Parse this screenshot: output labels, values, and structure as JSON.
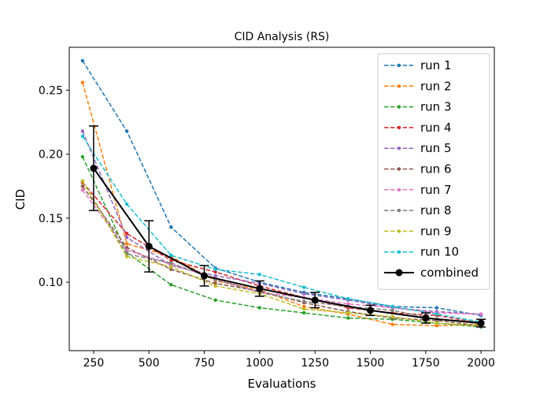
{
  "chart_data": {
    "type": "line",
    "title": "CID Analysis (RS)",
    "xlabel": "Evaluations",
    "ylabel": "CID",
    "xlim": [
      140,
      2060
    ],
    "ylim": [
      0.0465,
      0.2835
    ],
    "xticks": [
      250,
      500,
      750,
      1000,
      1250,
      1500,
      1750,
      2000
    ],
    "xtick_labels": [
      "250",
      "500",
      "750",
      "1000",
      "1250",
      "1500",
      "1750",
      "2000"
    ],
    "yticks": [
      0.1,
      0.15,
      0.2,
      0.25
    ],
    "ytick_labels": [
      "0.10",
      "0.15",
      "0.20",
      "0.25"
    ],
    "grid": false,
    "legend_position": "top-right",
    "x": [
      200,
      400,
      600,
      800,
      1000,
      1200,
      1400,
      1600,
      1800,
      2000
    ],
    "series": [
      {
        "name": "run 1",
        "color": "#1f77b4",
        "values": [
          0.273,
          0.218,
          0.143,
          0.111,
          0.1,
          0.092,
          0.087,
          0.081,
          0.08,
          0.074
        ]
      },
      {
        "name": "run 2",
        "color": "#ff7f0e",
        "values": [
          0.256,
          0.13,
          0.12,
          0.101,
          0.094,
          0.081,
          0.075,
          0.067,
          0.066,
          0.067
        ]
      },
      {
        "name": "run 3",
        "color": "#2ca02c",
        "values": [
          0.198,
          0.123,
          0.098,
          0.086,
          0.08,
          0.076,
          0.072,
          0.071,
          0.068,
          0.065
        ]
      },
      {
        "name": "run 4",
        "color": "#d62728",
        "values": [
          0.178,
          0.138,
          0.117,
          0.108,
          0.097,
          0.088,
          0.08,
          0.076,
          0.074,
          0.068
        ]
      },
      {
        "name": "run 5",
        "color": "#9467bd",
        "values": [
          0.218,
          0.135,
          0.113,
          0.105,
          0.099,
          0.091,
          0.086,
          0.08,
          0.077,
          0.075
        ]
      },
      {
        "name": "run 6",
        "color": "#8c564b",
        "values": [
          0.175,
          0.127,
          0.11,
          0.099,
          0.093,
          0.084,
          0.077,
          0.072,
          0.07,
          0.066
        ]
      },
      {
        "name": "run 7",
        "color": "#e377c2",
        "values": [
          0.172,
          0.125,
          0.114,
          0.103,
          0.092,
          0.088,
          0.083,
          0.08,
          0.076,
          0.075
        ]
      },
      {
        "name": "run 8",
        "color": "#7f7f7f",
        "values": [
          0.179,
          0.122,
          0.115,
          0.102,
          0.092,
          0.085,
          0.081,
          0.078,
          0.071,
          0.069
        ]
      },
      {
        "name": "run 9",
        "color": "#bcbd22",
        "values": [
          0.179,
          0.12,
          0.112,
          0.097,
          0.091,
          0.079,
          0.076,
          0.073,
          0.068,
          0.066
        ]
      },
      {
        "name": "run 10",
        "color": "#17becf",
        "values": [
          0.214,
          0.161,
          0.121,
          0.11,
          0.106,
          0.096,
          0.087,
          0.081,
          0.075,
          0.069
        ]
      }
    ],
    "combined": {
      "name": "combined",
      "color": "#000000",
      "x": [
        250,
        500,
        750,
        1000,
        1250,
        1500,
        1750,
        2000
      ],
      "values": [
        0.189,
        0.128,
        0.105,
        0.095,
        0.086,
        0.078,
        0.072,
        0.068
      ],
      "errors": [
        0.033,
        0.02,
        0.008,
        0.006,
        0.006,
        0.004,
        0.004,
        0.003
      ]
    }
  }
}
